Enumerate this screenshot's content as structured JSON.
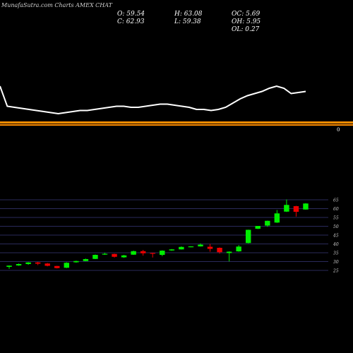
{
  "header": {
    "watermark": "MunafaSutra.com Charts AMEX CHAT"
  },
  "ohlc": {
    "open": "O: 59.54",
    "close": "C: 62.93",
    "high": "H: 63.08",
    "low": "L: 59.38",
    "oc": "OC: 5.69",
    "oh": "OH: 5.95",
    "ol": "OL: 0.27"
  },
  "colors": {
    "background": "#000000",
    "up": "#00ee00",
    "down": "#ee0000",
    "line": "#ffffff",
    "separator": "#ff8c00",
    "grid": "#2a2a5a"
  },
  "top_panel_label": "0",
  "chart_data": {
    "type": "candlestick",
    "ylim": [
      24,
      64
    ],
    "yticks": [
      25,
      30,
      35,
      40,
      45,
      50,
      55,
      60,
      65
    ],
    "candles": [
      {
        "o": 27.0,
        "h": 27.8,
        "l": 25.9,
        "c": 27.7
      },
      {
        "o": 27.8,
        "h": 28.9,
        "l": 27.6,
        "c": 28.6
      },
      {
        "o": 28.6,
        "h": 29.7,
        "l": 28.2,
        "c": 29.5
      },
      {
        "o": 29.5,
        "h": 29.8,
        "l": 28.0,
        "c": 28.8
      },
      {
        "o": 28.9,
        "h": 29.2,
        "l": 27.3,
        "c": 27.6
      },
      {
        "o": 27.5,
        "h": 27.6,
        "l": 26.1,
        "c": 26.3
      },
      {
        "o": 26.5,
        "h": 29.6,
        "l": 26.3,
        "c": 29.3
      },
      {
        "o": 29.6,
        "h": 30.5,
        "l": 29.4,
        "c": 30.3
      },
      {
        "o": 30.3,
        "h": 31.7,
        "l": 30.2,
        "c": 31.4
      },
      {
        "o": 31.5,
        "h": 34.0,
        "l": 31.4,
        "c": 33.8
      },
      {
        "o": 34.3,
        "h": 35.0,
        "l": 33.8,
        "c": 34.4
      },
      {
        "o": 34.3,
        "h": 34.5,
        "l": 32.3,
        "c": 32.7
      },
      {
        "o": 32.4,
        "h": 33.8,
        "l": 32.1,
        "c": 33.5
      },
      {
        "o": 33.9,
        "h": 36.2,
        "l": 33.8,
        "c": 35.9
      },
      {
        "o": 35.9,
        "h": 36.6,
        "l": 33.4,
        "c": 34.7
      },
      {
        "o": 34.9,
        "h": 35.0,
        "l": 32.3,
        "c": 34.8
      },
      {
        "o": 33.8,
        "h": 36.4,
        "l": 33.1,
        "c": 36.2
      },
      {
        "o": 36.3,
        "h": 37.1,
        "l": 36.1,
        "c": 36.9
      },
      {
        "o": 36.9,
        "h": 38.6,
        "l": 36.8,
        "c": 38.3
      },
      {
        "o": 38.3,
        "h": 38.7,
        "l": 38.1,
        "c": 38.6
      },
      {
        "o": 38.6,
        "h": 40.3,
        "l": 38.5,
        "c": 39.6
      },
      {
        "o": 38.4,
        "h": 40.0,
        "l": 35.6,
        "c": 37.2
      },
      {
        "o": 37.8,
        "h": 38.0,
        "l": 34.5,
        "c": 35.3
      },
      {
        "o": 34.8,
        "h": 35.8,
        "l": 30.1,
        "c": 35.6
      },
      {
        "o": 35.8,
        "h": 39.3,
        "l": 35.6,
        "c": 38.5
      },
      {
        "o": 40.5,
        "h": 48.1,
        "l": 40.3,
        "c": 48.0
      },
      {
        "o": 48.6,
        "h": 50.2,
        "l": 48.4,
        "c": 50.2
      },
      {
        "o": 50.4,
        "h": 53.2,
        "l": 49.7,
        "c": 53.1
      },
      {
        "o": 52.1,
        "h": 59.2,
        "l": 51.9,
        "c": 57.3
      },
      {
        "o": 58.3,
        "h": 65.2,
        "l": 58.1,
        "c": 62.1
      },
      {
        "o": 61.4,
        "h": 61.6,
        "l": 55.5,
        "c": 58.2
      },
      {
        "o": 59.5,
        "h": 63.1,
        "l": 59.4,
        "c": 62.9
      }
    ],
    "line_series": [
      92,
      73,
      72,
      71,
      70,
      69,
      68,
      67,
      66,
      67,
      68,
      69,
      69,
      70,
      71,
      72,
      73,
      73,
      72,
      72,
      73,
      74,
      75,
      75,
      74,
      73,
      72,
      70,
      70,
      69,
      70,
      72,
      76,
      80,
      83,
      85,
      87,
      90,
      92,
      90,
      85,
      86,
      87
    ]
  }
}
